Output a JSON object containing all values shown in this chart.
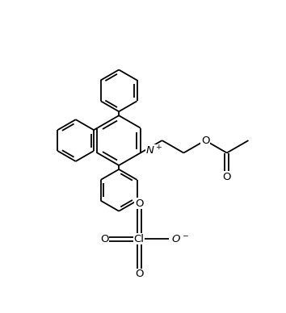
{
  "bg_color": "#ffffff",
  "line_color": "#000000",
  "lw": 1.3,
  "fs": 9.5,
  "figsize": [
    3.54,
    3.88
  ],
  "dpi": 100,
  "xlim": [
    -3.2,
    3.8
  ],
  "ylim": [
    -2.8,
    3.2
  ]
}
